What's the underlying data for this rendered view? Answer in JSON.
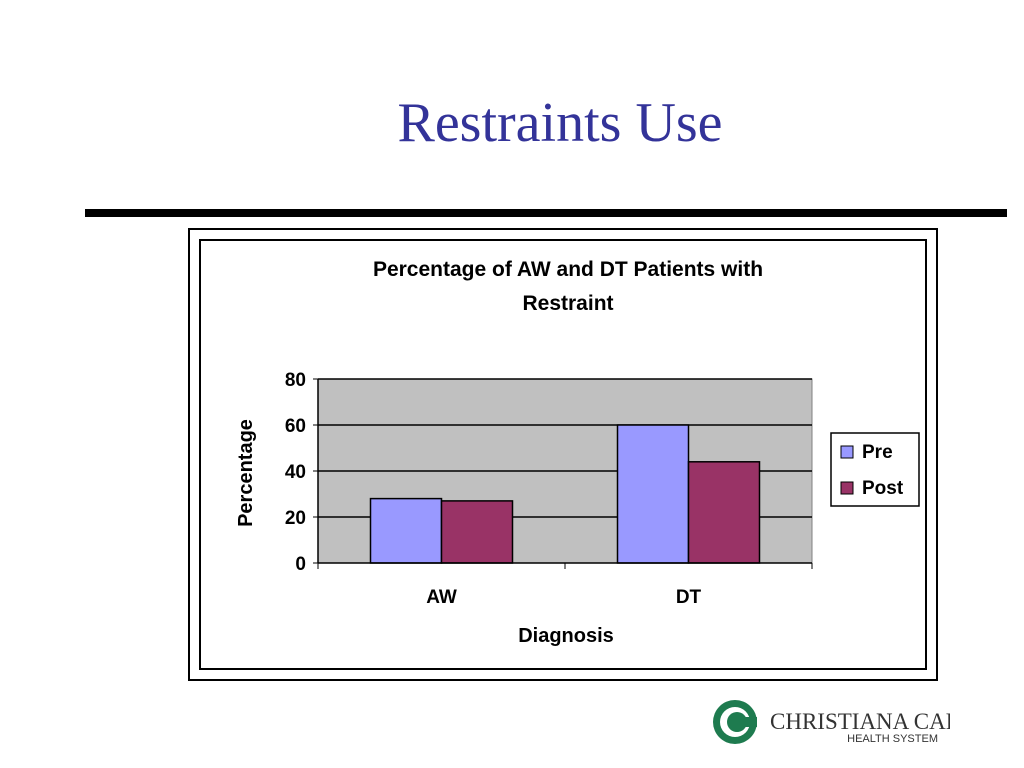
{
  "slide": {
    "title": "Restraints Use"
  },
  "logo": {
    "name_line1": "CHRISTIANA CARE",
    "name_line2": "HEALTH SYSTEM",
    "color": "#1e7b4f"
  },
  "colors": {
    "title": "#333399",
    "plot_area": "#c0c0c0",
    "pre": "#9999ff",
    "post": "#993366"
  },
  "chart_data": {
    "type": "bar",
    "title": "Percentage of AW and DT Patients with Restraint",
    "xlabel": "Diagnosis",
    "ylabel": "Percentage",
    "categories": [
      "AW",
      "DT"
    ],
    "series": [
      {
        "name": "Pre",
        "values": [
          28,
          60
        ],
        "color": "#9999ff"
      },
      {
        "name": "Post",
        "values": [
          27,
          44
        ],
        "color": "#993366"
      }
    ],
    "ylim": [
      0,
      80
    ],
    "yticks": [
      0,
      20,
      40,
      60,
      80
    ],
    "grid": true,
    "legend": "right"
  }
}
